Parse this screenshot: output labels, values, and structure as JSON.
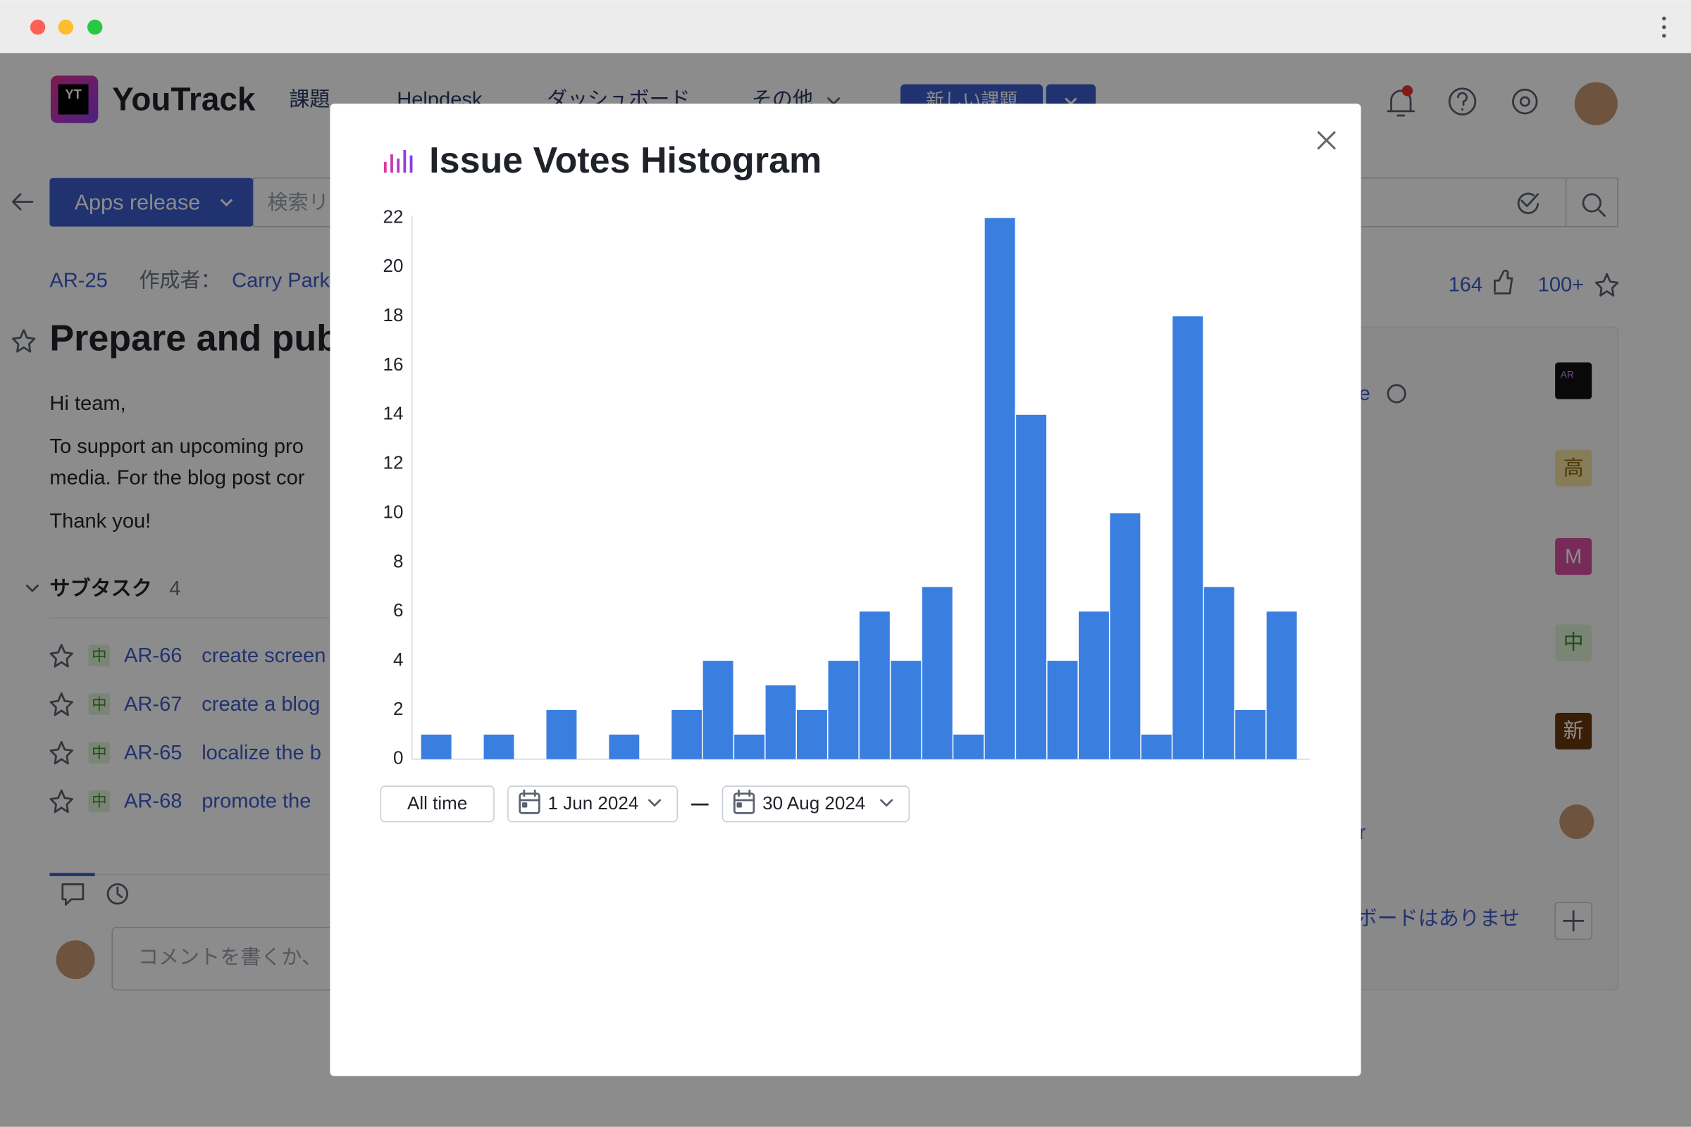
{
  "header": {
    "logo_badge": "YT",
    "logo": "YouTrack",
    "nav": [
      "課題",
      "Helpdesk",
      "ダッシュボード",
      "その他"
    ],
    "new_issue": "新しい課題"
  },
  "toolbar": {
    "query": "Apps release",
    "search_placeholder": "検索リ"
  },
  "issue": {
    "id": "AR-25",
    "author_label": "作成者：",
    "author": "Carry Park",
    "votes": 164,
    "stars": "100+",
    "title": "Prepare and publ",
    "body": [
      "Hi team,",
      "To support an upcoming pro",
      "media. For the blog post cor",
      "Thank you!"
    ],
    "subtasks_label": "サブタスク",
    "subtasks_count": 4,
    "subtasks": [
      {
        "priority": "中",
        "id": "AR-66",
        "summary": "create screen"
      },
      {
        "priority": "中",
        "id": "AR-67",
        "summary": "create a blog"
      },
      {
        "priority": "中",
        "id": "AR-65",
        "summary": "localize the b"
      },
      {
        "priority": "中",
        "id": "AR-68",
        "summary": "promote the"
      }
    ],
    "comment_placeholder": "コメントを書くか、"
  },
  "sidebar": {
    "project_badge": "AR",
    "fields": [
      "高",
      "M",
      "中",
      "新"
    ],
    "partial": [
      "e",
      "r"
    ],
    "boards": "ボードはありませ"
  },
  "modal": {
    "title": "Issue Votes Histogram",
    "filters": {
      "all_time": "All time",
      "from": "1 Jun 2024",
      "to": "30 Aug 2024"
    }
  },
  "chart_data": {
    "type": "bar",
    "color": "#3a7fe0",
    "categories": [
      null,
      null,
      null,
      null,
      null,
      null,
      null,
      null,
      null,
      null,
      null,
      null,
      null,
      null,
      null,
      null,
      null,
      null,
      null,
      null,
      null,
      null,
      null,
      null,
      null,
      null,
      null,
      null
    ],
    "values": [
      1,
      0,
      1,
      0,
      2,
      0,
      1,
      0,
      2,
      4,
      1,
      3,
      2,
      4,
      6,
      4,
      7,
      1,
      22,
      14,
      4,
      6,
      10,
      1,
      18,
      7,
      2,
      6
    ],
    "ylim": [
      0,
      22
    ],
    "yticks": [
      0,
      2,
      4,
      6,
      8,
      10,
      12,
      14,
      16,
      18,
      20,
      22
    ],
    "grid": false
  }
}
